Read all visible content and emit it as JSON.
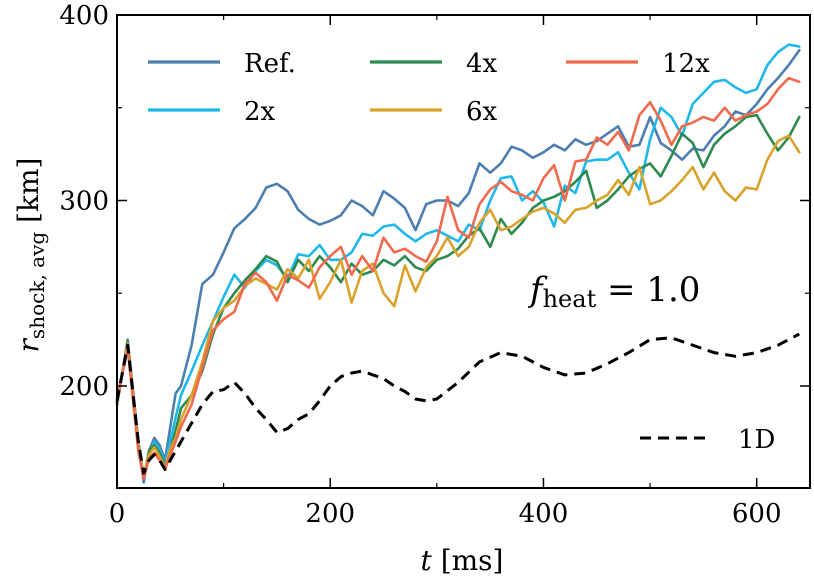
{
  "chart_data": {
    "type": "line",
    "xlabel_var": "t",
    "xlabel_unit": "[ms]",
    "ylabel_var": "r",
    "ylabel_sub": "shock, avg",
    "ylabel_unit": "[km]",
    "xlim": [
      0,
      650
    ],
    "ylim": [
      145,
      400
    ],
    "xticks": [
      0,
      200,
      400,
      600
    ],
    "yticks": [
      200,
      300,
      400
    ],
    "grid": false,
    "legend_position": "top",
    "annotation": {
      "var": "f",
      "sub": "heat",
      "rest": " = 1.0"
    },
    "series": [
      {
        "name": "Ref.",
        "color": "#4c7fb0",
        "dashed": false,
        "x": [
          0,
          10,
          20,
          25,
          30,
          35,
          40,
          45,
          50,
          55,
          60,
          70,
          80,
          90,
          100,
          110,
          120,
          130,
          140,
          150,
          160,
          170,
          180,
          190,
          200,
          210,
          220,
          230,
          240,
          250,
          260,
          270,
          280,
          290,
          300,
          310,
          320,
          330,
          340,
          350,
          360,
          370,
          380,
          390,
          400,
          410,
          420,
          430,
          440,
          450,
          460,
          470,
          480,
          490,
          500,
          510,
          520,
          530,
          540,
          550,
          560,
          570,
          580,
          590,
          600,
          610,
          620,
          630,
          640
        ],
        "y": [
          190,
          225,
          170,
          148,
          165,
          172,
          168,
          160,
          178,
          196,
          200,
          222,
          255,
          260,
          272,
          285,
          290,
          296,
          307,
          309,
          305,
          295,
          290,
          287,
          289,
          292,
          300,
          297,
          292,
          305,
          301,
          296,
          284,
          298,
          300,
          300,
          297,
          304,
          320,
          315,
          320,
          329,
          327,
          323,
          326,
          330,
          327,
          333,
          330,
          332,
          336,
          340,
          329,
          330,
          345,
          331,
          327,
          322,
          328,
          327,
          335,
          340,
          348,
          346,
          352,
          360,
          366,
          373,
          381
        ]
      },
      {
        "name": "2x",
        "color": "#1fb8ea",
        "dashed": false,
        "x": [
          0,
          10,
          20,
          25,
          30,
          35,
          40,
          45,
          50,
          55,
          60,
          70,
          80,
          90,
          100,
          110,
          120,
          130,
          140,
          150,
          160,
          170,
          180,
          190,
          200,
          210,
          220,
          230,
          240,
          250,
          260,
          270,
          280,
          290,
          300,
          310,
          320,
          330,
          340,
          350,
          360,
          370,
          380,
          390,
          400,
          410,
          420,
          430,
          440,
          450,
          460,
          470,
          480,
          490,
          500,
          510,
          520,
          530,
          540,
          550,
          560,
          570,
          580,
          590,
          600,
          610,
          620,
          630,
          640
        ],
        "y": [
          192,
          222,
          168,
          152,
          162,
          170,
          166,
          158,
          170,
          183,
          195,
          208,
          222,
          235,
          248,
          260,
          253,
          262,
          268,
          265,
          258,
          271,
          270,
          276,
          268,
          268,
          272,
          282,
          281,
          286,
          287,
          282,
          278,
          282,
          284,
          281,
          278,
          287,
          284,
          300,
          312,
          313,
          300,
          305,
          299,
          286,
          308,
          304,
          321,
          322,
          322,
          326,
          315,
          306,
          333,
          350,
          345,
          335,
          352,
          358,
          364,
          365,
          361,
          358,
          360,
          373,
          380,
          384,
          383
        ]
      },
      {
        "name": "4x",
        "color": "#2d8a4e",
        "dashed": false,
        "x": [
          0,
          10,
          20,
          25,
          30,
          35,
          40,
          45,
          50,
          55,
          60,
          70,
          80,
          90,
          100,
          110,
          120,
          130,
          140,
          150,
          160,
          170,
          180,
          190,
          200,
          210,
          220,
          230,
          240,
          250,
          260,
          270,
          280,
          290,
          300,
          310,
          320,
          330,
          340,
          350,
          360,
          370,
          380,
          390,
          400,
          410,
          420,
          430,
          440,
          450,
          460,
          470,
          480,
          490,
          500,
          510,
          520,
          530,
          540,
          550,
          560,
          570,
          580,
          590,
          600,
          610,
          620,
          630,
          640
        ],
        "y": [
          190,
          224,
          170,
          150,
          165,
          168,
          164,
          157,
          165,
          176,
          188,
          195,
          208,
          228,
          242,
          250,
          257,
          263,
          270,
          267,
          256,
          268,
          262,
          270,
          264,
          256,
          266,
          260,
          262,
          268,
          265,
          270,
          264,
          262,
          268,
          270,
          274,
          281,
          285,
          275,
          290,
          282,
          288,
          296,
          300,
          302,
          305,
          310,
          316,
          296,
          300,
          306,
          313,
          317,
          320,
          313,
          324,
          336,
          331,
          318,
          330,
          336,
          340,
          345,
          346,
          336,
          327,
          334,
          345
        ]
      },
      {
        "name": "6x",
        "color": "#d9a22b",
        "dashed": false,
        "x": [
          0,
          10,
          20,
          25,
          30,
          35,
          40,
          45,
          50,
          55,
          60,
          70,
          80,
          90,
          100,
          110,
          120,
          130,
          140,
          150,
          160,
          170,
          180,
          190,
          200,
          210,
          220,
          230,
          240,
          250,
          260,
          270,
          280,
          290,
          300,
          310,
          320,
          330,
          340,
          350,
          360,
          370,
          380,
          390,
          400,
          410,
          420,
          430,
          440,
          450,
          460,
          470,
          480,
          490,
          500,
          510,
          520,
          530,
          540,
          550,
          560,
          570,
          580,
          590,
          600,
          610,
          620,
          630,
          640
        ],
        "y": [
          191,
          223,
          168,
          151,
          163,
          167,
          162,
          156,
          166,
          172,
          182,
          195,
          213,
          235,
          242,
          246,
          254,
          258,
          255,
          252,
          263,
          258,
          268,
          247,
          256,
          268,
          245,
          262,
          266,
          250,
          243,
          265,
          251,
          264,
          270,
          280,
          270,
          275,
          288,
          295,
          284,
          286,
          290,
          294,
          296,
          293,
          288,
          295,
          296,
          300,
          303,
          311,
          303,
          318,
          298,
          300,
          305,
          311,
          318,
          306,
          315,
          305,
          300,
          307,
          306,
          322,
          332,
          335,
          326
        ]
      },
      {
        "name": "12x",
        "color": "#f06a4e",
        "dashed": false,
        "x": [
          0,
          10,
          20,
          25,
          30,
          35,
          40,
          45,
          50,
          55,
          60,
          70,
          80,
          90,
          100,
          110,
          120,
          130,
          140,
          150,
          160,
          170,
          180,
          190,
          200,
          210,
          220,
          230,
          240,
          250,
          260,
          270,
          280,
          290,
          300,
          310,
          320,
          330,
          340,
          350,
          360,
          370,
          380,
          390,
          400,
          410,
          420,
          430,
          440,
          450,
          460,
          470,
          480,
          490,
          500,
          510,
          520,
          530,
          540,
          550,
          560,
          570,
          580,
          590,
          600,
          610,
          620,
          630,
          640
        ],
        "y": [
          193,
          220,
          165,
          150,
          161,
          164,
          160,
          155,
          163,
          170,
          178,
          190,
          210,
          230,
          236,
          240,
          255,
          261,
          256,
          246,
          260,
          257,
          253,
          264,
          270,
          275,
          260,
          270,
          262,
          280,
          272,
          274,
          270,
          267,
          278,
          302,
          284,
          280,
          298,
          306,
          310,
          305,
          303,
          300,
          312,
          319,
          300,
          321,
          322,
          334,
          330,
          337,
          327,
          346,
          353,
          343,
          330,
          340,
          342,
          345,
          343,
          350,
          343,
          346,
          348,
          352,
          360,
          366,
          364
        ]
      },
      {
        "name": "1D",
        "color": "#000000",
        "dashed": true,
        "x": [
          0,
          10,
          20,
          25,
          30,
          35,
          40,
          45,
          50,
          60,
          70,
          80,
          90,
          100,
          110,
          120,
          130,
          140,
          150,
          160,
          170,
          180,
          190,
          200,
          210,
          220,
          230,
          240,
          250,
          260,
          270,
          280,
          290,
          300,
          320,
          340,
          360,
          380,
          400,
          420,
          440,
          460,
          480,
          500,
          520,
          540,
          560,
          580,
          600,
          620,
          640
        ],
        "y": [
          192,
          222,
          170,
          153,
          160,
          163,
          160,
          155,
          160,
          170,
          180,
          190,
          197,
          198,
          202,
          196,
          188,
          182,
          175,
          177,
          182,
          185,
          192,
          200,
          205,
          207,
          208,
          206,
          204,
          200,
          197,
          193,
          192,
          193,
          202,
          213,
          218,
          216,
          210,
          206,
          207,
          212,
          218,
          225,
          226,
          222,
          218,
          216,
          218,
          222,
          228
        ]
      }
    ]
  }
}
